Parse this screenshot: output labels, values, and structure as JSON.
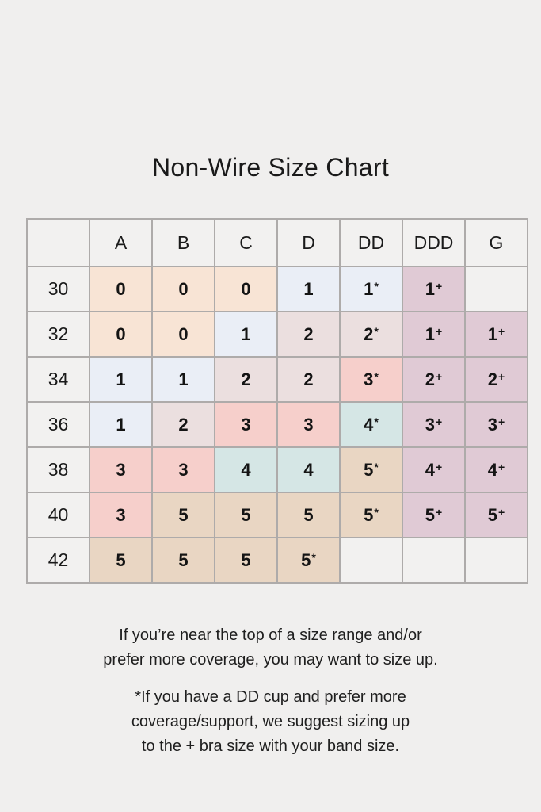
{
  "page": {
    "background_color": "#f0efee",
    "text_color": "#1d1d1d",
    "grid_border_color": "#aeabaa"
  },
  "cell_colors": {
    "peach": "#f8e4d5",
    "blue": "#eaeef6",
    "dustypink": "#ebdfdf",
    "pink": "#f6cfcb",
    "teal": "#d5e6e5",
    "tan": "#e9d6c3",
    "mauve": "#e0cad5",
    "empty": "#f2f1f0"
  },
  "chart_data": {
    "type": "table",
    "title": "Non-Wire Size Chart",
    "corner_label": "",
    "columns": [
      "A",
      "B",
      "C",
      "D",
      "DD",
      "DDD",
      "G"
    ],
    "rows": [
      {
        "band": "30",
        "cells": [
          {
            "v": "0",
            "suffix": "",
            "c": "peach"
          },
          {
            "v": "0",
            "suffix": "",
            "c": "peach"
          },
          {
            "v": "0",
            "suffix": "",
            "c": "peach"
          },
          {
            "v": "1",
            "suffix": "",
            "c": "blue"
          },
          {
            "v": "1",
            "suffix": "*",
            "c": "blue"
          },
          {
            "v": "1",
            "suffix": "+",
            "c": "mauve"
          },
          {
            "v": "",
            "suffix": "",
            "c": "empty"
          }
        ]
      },
      {
        "band": "32",
        "cells": [
          {
            "v": "0",
            "suffix": "",
            "c": "peach"
          },
          {
            "v": "0",
            "suffix": "",
            "c": "peach"
          },
          {
            "v": "1",
            "suffix": "",
            "c": "blue"
          },
          {
            "v": "2",
            "suffix": "",
            "c": "dustypink"
          },
          {
            "v": "2",
            "suffix": "*",
            "c": "dustypink"
          },
          {
            "v": "1",
            "suffix": "+",
            "c": "mauve"
          },
          {
            "v": "1",
            "suffix": "+",
            "c": "mauve"
          }
        ]
      },
      {
        "band": "34",
        "cells": [
          {
            "v": "1",
            "suffix": "",
            "c": "blue"
          },
          {
            "v": "1",
            "suffix": "",
            "c": "blue"
          },
          {
            "v": "2",
            "suffix": "",
            "c": "dustypink"
          },
          {
            "v": "2",
            "suffix": "",
            "c": "dustypink"
          },
          {
            "v": "3",
            "suffix": "*",
            "c": "pink"
          },
          {
            "v": "2",
            "suffix": "+",
            "c": "mauve"
          },
          {
            "v": "2",
            "suffix": "+",
            "c": "mauve"
          }
        ]
      },
      {
        "band": "36",
        "cells": [
          {
            "v": "1",
            "suffix": "",
            "c": "blue"
          },
          {
            "v": "2",
            "suffix": "",
            "c": "dustypink"
          },
          {
            "v": "3",
            "suffix": "",
            "c": "pink"
          },
          {
            "v": "3",
            "suffix": "",
            "c": "pink"
          },
          {
            "v": "4",
            "suffix": "*",
            "c": "teal"
          },
          {
            "v": "3",
            "suffix": "+",
            "c": "mauve"
          },
          {
            "v": "3",
            "suffix": "+",
            "c": "mauve"
          }
        ]
      },
      {
        "band": "38",
        "cells": [
          {
            "v": "3",
            "suffix": "",
            "c": "pink"
          },
          {
            "v": "3",
            "suffix": "",
            "c": "pink"
          },
          {
            "v": "4",
            "suffix": "",
            "c": "teal"
          },
          {
            "v": "4",
            "suffix": "",
            "c": "teal"
          },
          {
            "v": "5",
            "suffix": "*",
            "c": "tan"
          },
          {
            "v": "4",
            "suffix": "+",
            "c": "mauve"
          },
          {
            "v": "4",
            "suffix": "+",
            "c": "mauve"
          }
        ]
      },
      {
        "band": "40",
        "cells": [
          {
            "v": "3",
            "suffix": "",
            "c": "pink"
          },
          {
            "v": "5",
            "suffix": "",
            "c": "tan"
          },
          {
            "v": "5",
            "suffix": "",
            "c": "tan"
          },
          {
            "v": "5",
            "suffix": "",
            "c": "tan"
          },
          {
            "v": "5",
            "suffix": "*",
            "c": "tan"
          },
          {
            "v": "5",
            "suffix": "+",
            "c": "mauve"
          },
          {
            "v": "5",
            "suffix": "+",
            "c": "mauve"
          }
        ]
      },
      {
        "band": "42",
        "cells": [
          {
            "v": "5",
            "suffix": "",
            "c": "tan"
          },
          {
            "v": "5",
            "suffix": "",
            "c": "tan"
          },
          {
            "v": "5",
            "suffix": "",
            "c": "tan"
          },
          {
            "v": "5",
            "suffix": "*",
            "c": "tan"
          },
          {
            "v": "",
            "suffix": "",
            "c": "empty"
          },
          {
            "v": "",
            "suffix": "",
            "c": "empty"
          },
          {
            "v": "",
            "suffix": "",
            "c": "empty"
          }
        ]
      }
    ]
  },
  "notes": [
    {
      "lines": [
        "If you’re near the top of a size range and/or",
        "prefer more coverage, you may want to size up."
      ]
    },
    {
      "lines": [
        "*If you have a DD cup and prefer more",
        "coverage/support, we suggest sizing up",
        "to the + bra size with your band size."
      ]
    }
  ]
}
